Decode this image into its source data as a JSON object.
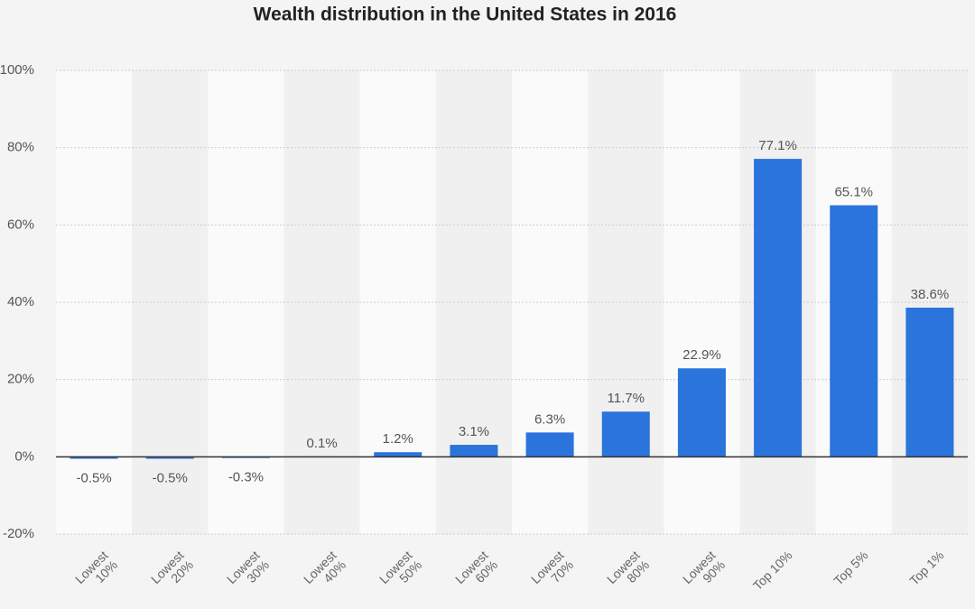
{
  "chart_data": {
    "type": "bar",
    "title": "Wealth distribution in the United States in 2016",
    "categories": [
      "Lowest 10%",
      "Lowest 20%",
      "Lowest 30%",
      "Lowest 40%",
      "Lowest 50%",
      "Lowest 60%",
      "Lowest 70%",
      "Lowest 80%",
      "Lowest 90%",
      "Top 10%",
      "Top 5%",
      "Top 1%"
    ],
    "values": [
      -0.5,
      -0.5,
      -0.3,
      0.1,
      1.2,
      3.1,
      6.3,
      11.7,
      22.9,
      77.1,
      65.1,
      38.6
    ],
    "value_labels": [
      "-0.5%",
      "-0.5%",
      "-0.3%",
      "0.1%",
      "1.2%",
      "3.1%",
      "6.3%",
      "11.7%",
      "22.9%",
      "77.1%",
      "65.1%",
      "38.6%"
    ],
    "color": "#2a74dc",
    "ylim": [
      -20,
      100
    ],
    "yticks": [
      {
        "value": -20,
        "label": "-20%"
      },
      {
        "value": 0,
        "label": "0%"
      },
      {
        "value": 20,
        "label": "20%"
      },
      {
        "value": 40,
        "label": "40%"
      },
      {
        "value": 60,
        "label": "60%"
      },
      {
        "value": 80,
        "label": "80%"
      },
      {
        "value": 100,
        "label": "100%"
      }
    ],
    "grid": true
  }
}
